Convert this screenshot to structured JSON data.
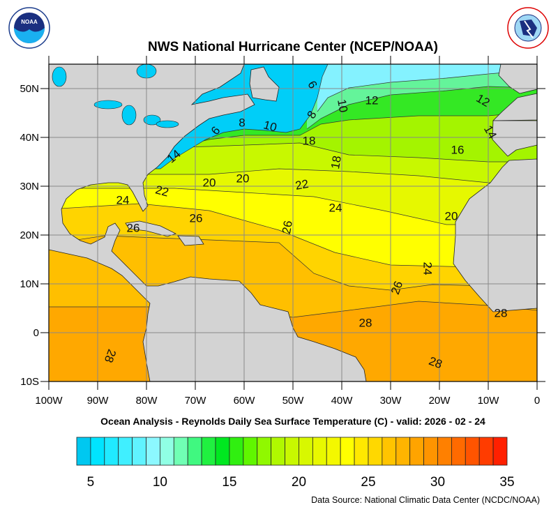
{
  "header": {
    "title": "NWS National Hurricane Center (NCEP/NOAA)",
    "left_logo": "NOAA",
    "right_logo": "NATIONAL WEATHER SERVICE"
  },
  "map": {
    "subtitle": "Ocean Analysis - Reynolds Daily Sea Surface Temperature (C) - valid: 2026 - 02 - 24",
    "lat_labels": [
      "50N",
      "40N",
      "30N",
      "20N",
      "10N",
      "0",
      "10S"
    ],
    "lon_labels": [
      "100W",
      "90W",
      "80W",
      "70W",
      "60W",
      "50W",
      "40W",
      "30W",
      "20W",
      "10W",
      "0"
    ],
    "extent": {
      "lon": [
        -100,
        0
      ],
      "lat": [
        -10,
        55
      ]
    },
    "land_color": "#d3d3d3",
    "contour_labels": [
      "6",
      "12",
      "12",
      "10",
      "8",
      "8",
      "10",
      "6",
      "14",
      "18",
      "18",
      "16",
      "14",
      "20",
      "20",
      "22",
      "22",
      "24",
      "24",
      "26",
      "26",
      "26",
      "20",
      "24",
      "26",
      "28",
      "28",
      "28",
      "28"
    ]
  },
  "colorbar": {
    "tick_labels": [
      "5",
      "10",
      "15",
      "20",
      "25",
      "30",
      "35"
    ],
    "tick_values": [
      5,
      10,
      15,
      20,
      25,
      30,
      35
    ],
    "colors": [
      "#00c8f0",
      "#00e4ff",
      "#20eaff",
      "#40efff",
      "#60f3ff",
      "#8cf8ff",
      "#90ffe4",
      "#70ffb4",
      "#40f880",
      "#20f040",
      "#00e820",
      "#30ef10",
      "#60f600",
      "#90f800",
      "#b0f800",
      "#c8f800",
      "#d8f800",
      "#e8f800",
      "#f4f800",
      "#ffff00",
      "#ffe800",
      "#ffd800",
      "#ffc400",
      "#ffb400",
      "#ffa400",
      "#ff9400",
      "#ff8000",
      "#ff6a00",
      "#ff5400",
      "#ff3c00",
      "#ff2000"
    ]
  },
  "footer": {
    "data_source": "Data Source: National Climatic Data Center (NCDC/NOAA)"
  }
}
